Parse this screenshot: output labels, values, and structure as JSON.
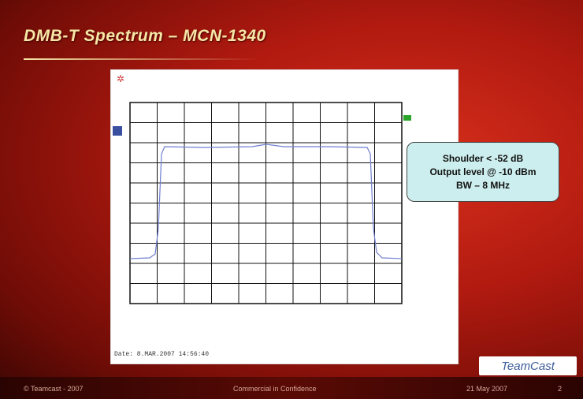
{
  "header": {
    "title": "DMB-T Spectrum – MCN-1340"
  },
  "screenshot": {
    "date_line": "Date: 8.MAR.2007 14:56:40"
  },
  "callout": {
    "lines": [
      "Shoulder < -52 dB",
      "Output level @ -10 dBm",
      "BW – 8 MHz"
    ]
  },
  "logo": {
    "text": "TeamCast"
  },
  "footer": {
    "copyright": "© Teamcast - 2007",
    "confidentiality": "Commercial in Confidence",
    "date": "21 May 2007",
    "page": "2"
  }
}
